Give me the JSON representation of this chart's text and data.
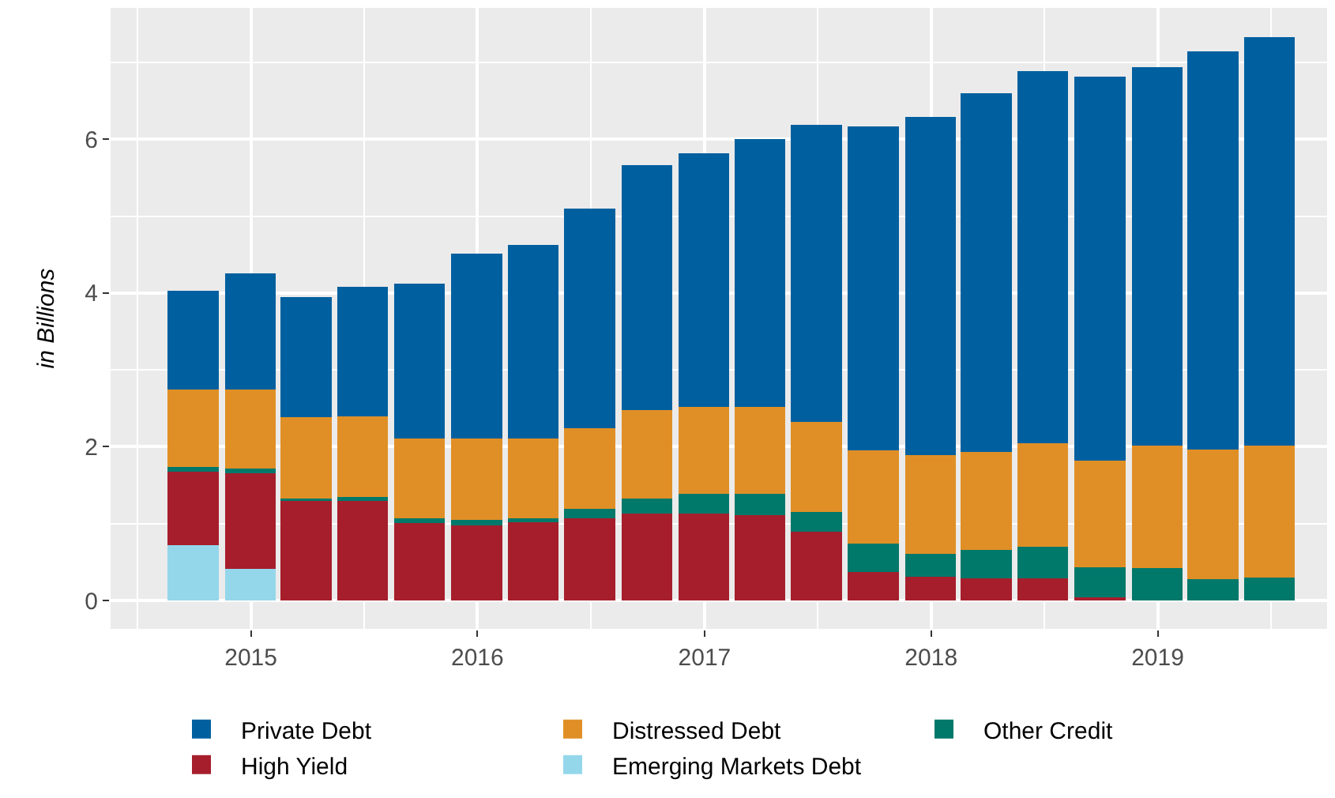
{
  "chart_data": {
    "type": "bar",
    "stacked": true,
    "ylabel": "in Billions",
    "x": [
      "2014-09-30",
      "2014-12-31",
      "2015-03-31",
      "2015-06-30",
      "2015-09-30",
      "2015-12-31",
      "2016-03-31",
      "2016-06-30",
      "2016-09-30",
      "2016-12-31",
      "2017-03-31",
      "2017-06-30",
      "2017-09-30",
      "2017-12-31",
      "2018-03-31",
      "2018-06-30",
      "2018-09-30",
      "2018-12-31",
      "2019-03-31",
      "2019-06-30"
    ],
    "series": [
      {
        "name": "Emerging Markets Debt",
        "color": "#94d7eb",
        "values": [
          0.72,
          0.41,
          null,
          null,
          null,
          null,
          null,
          null,
          null,
          null,
          null,
          null,
          null,
          null,
          null,
          null,
          null,
          null,
          null,
          null
        ]
      },
      {
        "name": "High Yield",
        "color": "#a61e2c",
        "values": [
          0.96,
          1.25,
          1.3,
          1.3,
          1.01,
          0.98,
          1.02,
          1.07,
          1.13,
          1.13,
          1.11,
          0.89,
          0.37,
          0.31,
          0.29,
          0.29,
          0.04,
          null,
          null,
          null
        ]
      },
      {
        "name": "Other Credit",
        "color": "#00786a",
        "values": [
          0.06,
          0.06,
          0.03,
          0.05,
          0.06,
          0.07,
          0.05,
          0.12,
          0.2,
          0.26,
          0.28,
          0.26,
          0.37,
          0.3,
          0.37,
          0.41,
          0.39,
          0.42,
          0.28,
          0.3
        ]
      },
      {
        "name": "Distressed Debt",
        "color": "#e08f26",
        "values": [
          1.0,
          1.03,
          1.05,
          1.05,
          1.04,
          1.06,
          1.04,
          1.05,
          1.15,
          1.13,
          1.13,
          1.17,
          1.21,
          1.28,
          1.27,
          1.35,
          1.39,
          1.6,
          1.68,
          1.71
        ]
      },
      {
        "name": "Private Debt",
        "color": "#00609f",
        "values": [
          1.29,
          1.51,
          1.57,
          1.68,
          2.01,
          2.4,
          2.52,
          2.86,
          3.18,
          3.3,
          3.48,
          3.87,
          4.22,
          4.4,
          4.67,
          4.84,
          5.0,
          4.92,
          5.18,
          5.32
        ]
      }
    ],
    "xlim": [
      "2014-05-20",
      "2019-10-01"
    ],
    "xticks": [
      {
        "value": "2015-01-01",
        "label": "2015"
      },
      {
        "value": "2016-01-01",
        "label": "2016"
      },
      {
        "value": "2017-01-01",
        "label": "2017"
      },
      {
        "value": "2018-01-01",
        "label": "2018"
      },
      {
        "value": "2019-01-01",
        "label": "2019"
      }
    ],
    "ylim": [
      -0.37,
      7.71
    ],
    "yticks": [
      0,
      2,
      4,
      6
    ],
    "grid": true,
    "legend": "bottom"
  }
}
